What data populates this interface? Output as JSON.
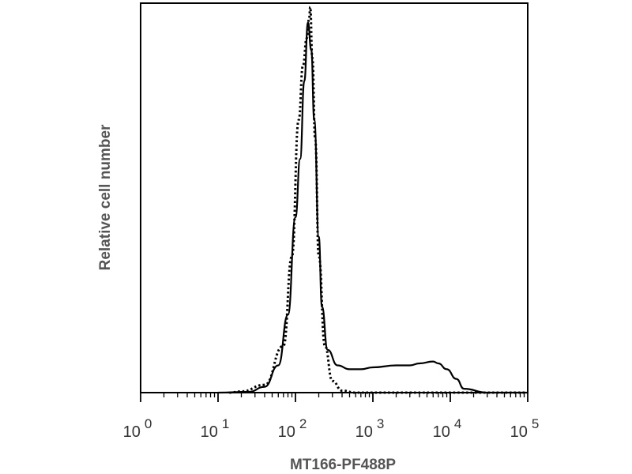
{
  "chart_data": {
    "type": "line",
    "title": "",
    "xlabel": "MT166-PF488P",
    "ylabel": "Relative cell number",
    "x_scale": "log",
    "xlim": [
      1,
      100000
    ],
    "ylim": [
      0,
      100
    ],
    "grid": false,
    "legend": "none",
    "x_ticks": [
      {
        "base": "10",
        "exp": "0",
        "value": 1
      },
      {
        "base": "10",
        "exp": "1",
        "value": 10
      },
      {
        "base": "10",
        "exp": "2",
        "value": 100
      },
      {
        "base": "10",
        "exp": "3",
        "value": 1000
      },
      {
        "base": "10",
        "exp": "4",
        "value": 10000
      },
      {
        "base": "10",
        "exp": "5",
        "value": 100000
      }
    ],
    "series": [
      {
        "style": "dotted",
        "color": "#000000",
        "x": [
          14,
          20,
          40,
          70,
          90,
          110,
          125,
          140,
          150,
          155,
          165,
          180,
          200,
          240,
          300,
          400,
          600,
          1000,
          3000,
          10000,
          30000,
          100000
        ],
        "y": [
          0,
          0.3,
          2,
          12,
          35,
          70,
          84,
          91,
          96,
          99,
          86,
          65,
          35,
          12,
          3,
          0.5,
          0,
          0,
          0,
          0,
          0,
          0
        ]
      },
      {
        "style": "solid",
        "color": "#000000",
        "x": [
          10,
          25,
          40,
          60,
          80,
          100,
          115,
          130,
          145,
          160,
          175,
          200,
          220,
          260,
          350,
          500,
          700,
          1000,
          2000,
          3000,
          4000,
          6000,
          7000,
          9000,
          12000,
          15000,
          30000,
          100000
        ],
        "y": [
          0,
          0.2,
          1.5,
          7,
          20,
          45,
          60,
          80,
          95,
          88,
          70,
          40,
          22,
          11,
          7,
          6,
          6,
          6.5,
          7,
          7,
          7.5,
          8,
          7.5,
          6,
          3.5,
          1,
          0,
          0
        ]
      }
    ]
  }
}
